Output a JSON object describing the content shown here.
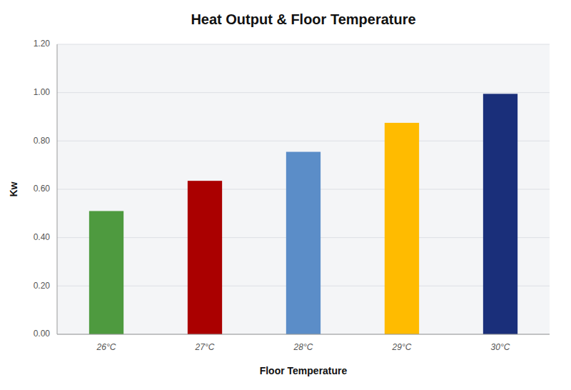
{
  "chart_data": {
    "type": "bar",
    "title": "Heat Output & Floor Temperature",
    "xlabel": "Floor Temperature",
    "ylabel": "Kw",
    "categories": [
      "26°C",
      "27°C",
      "28°C",
      "29°C",
      "30°C"
    ],
    "values": [
      0.51,
      0.635,
      0.755,
      0.875,
      0.995
    ],
    "colors": [
      "#4e9a3f",
      "#aa0000",
      "#5b8dc8",
      "#ffbb00",
      "#1a2f7a"
    ],
    "ylim": [
      0,
      1.2
    ],
    "yticks": [
      {
        "value": 0.0,
        "label": "0.00"
      },
      {
        "value": 0.2,
        "label": "0.20"
      },
      {
        "value": 0.4,
        "label": "0.40"
      },
      {
        "value": 0.6,
        "label": "0.60"
      },
      {
        "value": 0.8,
        "label": "0.80"
      },
      {
        "value": 1.0,
        "label": "1.00"
      },
      {
        "value": 1.2,
        "label": "1.20"
      }
    ],
    "grid": true
  }
}
